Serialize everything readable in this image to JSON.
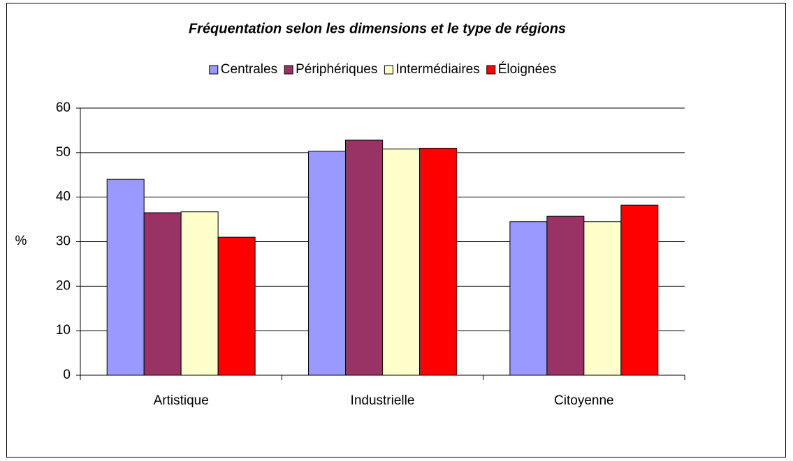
{
  "chart_data": {
    "type": "bar",
    "title": "Fréquentation selon les dimensions et le type de régions",
    "y_label": "%",
    "categories": [
      "Artistique",
      "Industrielle",
      "Citoyenne"
    ],
    "series": [
      {
        "name": "Centrales",
        "color": "#9999ff",
        "values": [
          44,
          50.3,
          34.5
        ]
      },
      {
        "name": "Périphériques",
        "color": "#993366",
        "values": [
          36.5,
          52.8,
          35.7
        ]
      },
      {
        "name": "Intermédiaires",
        "color": "#ffffcc",
        "values": [
          36.7,
          50.8,
          34.5
        ]
      },
      {
        "name": "Éloignées",
        "color": "#ff0000",
        "values": [
          31,
          51,
          38.2
        ]
      }
    ],
    "ylim": [
      0,
      60
    ],
    "yticks": [
      0,
      10,
      20,
      30,
      40,
      50,
      60
    ],
    "grid": true,
    "legend": "top"
  }
}
